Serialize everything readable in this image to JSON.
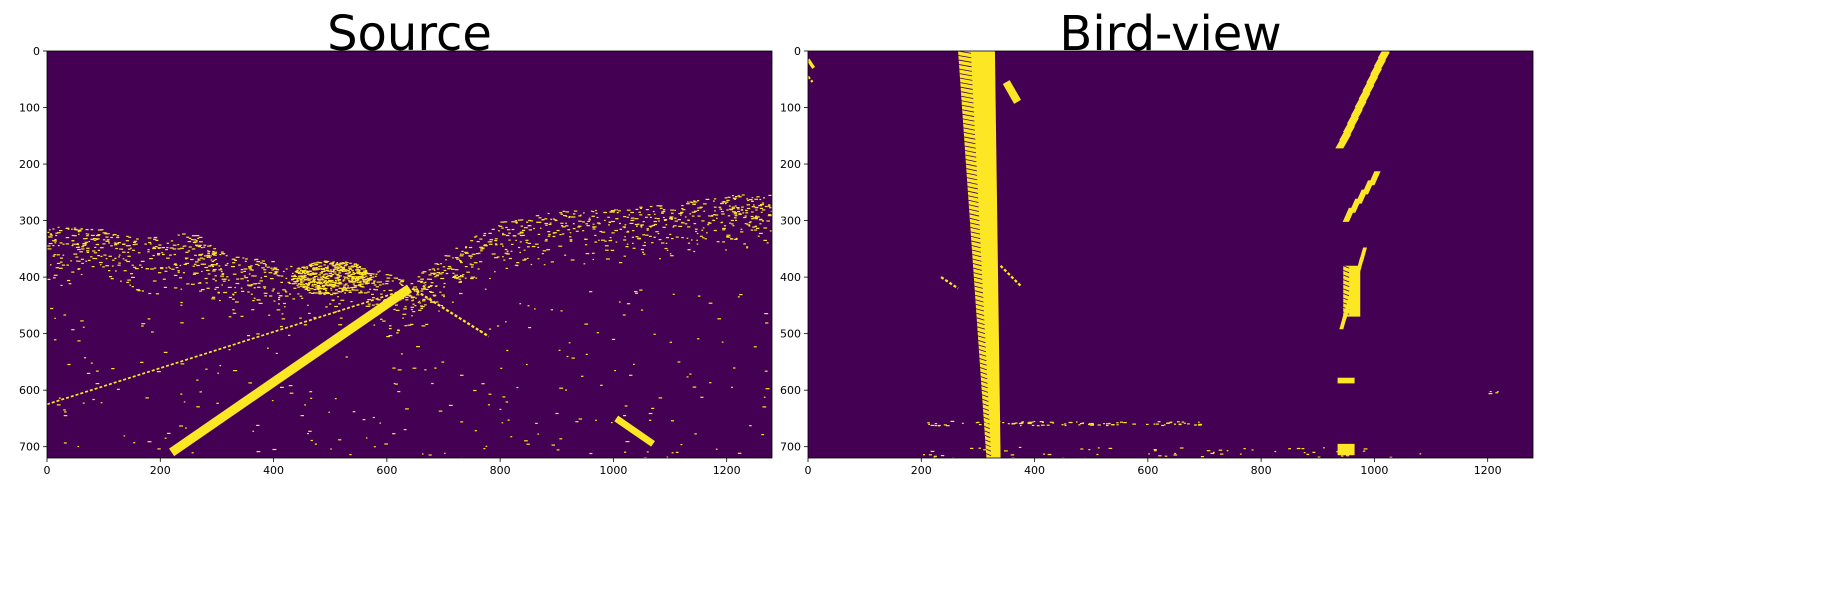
{
  "chart_data": [
    {
      "type": "heatmap",
      "title": "Source",
      "xlabel": "",
      "ylabel": "",
      "xlim": [
        0,
        1280
      ],
      "ylim": [
        720,
        0
      ],
      "x_ticks": [
        0,
        200,
        400,
        600,
        800,
        1000,
        1200
      ],
      "y_ticks": [
        0,
        100,
        200,
        300,
        400,
        500,
        600,
        700
      ],
      "background_color": "#440154",
      "foreground_color": "#fde725",
      "features": [
        {
          "kind": "line",
          "points": [
            [
              220,
              710
            ],
            [
              640,
              420
            ]
          ],
          "width": 16
        },
        {
          "kind": "line",
          "points": [
            [
              0,
              625
            ],
            [
              640,
              420
            ]
          ],
          "width": 3
        },
        {
          "kind": "line",
          "points": [
            [
              645,
              420
            ],
            [
              780,
              505
            ]
          ],
          "width": 4
        },
        {
          "kind": "line",
          "points": [
            [
              1005,
              650
            ],
            [
              1070,
              695
            ]
          ],
          "width": 12
        },
        {
          "kind": "edges",
          "points": [
            [
              0,
              310
            ],
            [
              80,
              310
            ],
            [
              150,
              330
            ],
            [
              250,
              320
            ],
            [
              320,
              360
            ],
            [
              420,
              375
            ],
            [
              560,
              380
            ],
            [
              640,
              410
            ],
            [
              700,
              360
            ],
            [
              800,
              300
            ],
            [
              900,
              280
            ],
            [
              1000,
              280
            ],
            [
              1100,
              270
            ],
            [
              1200,
              255
            ],
            [
              1280,
              250
            ]
          ],
          "spread": 110,
          "count": 1400
        },
        {
          "kind": "cluster",
          "center": [
            500,
            400
          ],
          "rx": 70,
          "ry": 30,
          "count": 500
        },
        {
          "kind": "dots",
          "range": [
            [
              0,
              1280
            ],
            [
              420,
              720
            ]
          ],
          "count": 260
        }
      ]
    },
    {
      "type": "heatmap",
      "title": "Bird-view",
      "xlabel": "",
      "ylabel": "",
      "xlim": [
        0,
        1280
      ],
      "ylim": [
        720,
        0
      ],
      "x_ticks": [
        0,
        200,
        400,
        600,
        800,
        1000,
        1200
      ],
      "y_ticks": [
        0,
        100,
        200,
        300,
        400,
        500,
        600,
        700
      ],
      "background_color": "#440154",
      "foreground_color": "#fde725",
      "features": [
        {
          "kind": "lane",
          "top": [
            265,
            330
          ],
          "bottom": [
            315,
            340
          ],
          "y": [
            0,
            720
          ]
        },
        {
          "kind": "dashes",
          "points": [
            [
              1020,
              0
            ],
            [
              945,
              160
            ]
          ],
          "width": 28,
          "count": 12
        },
        {
          "kind": "dashes",
          "points": [
            [
              1000,
              225
            ],
            [
              955,
              290
            ]
          ],
          "width": 22,
          "count": 5
        },
        {
          "kind": "lane",
          "top": [
            945,
            975
          ],
          "bottom": [
            945,
            975
          ],
          "y": [
            380,
            470
          ]
        },
        {
          "kind": "dashes",
          "points": [
            [
              980,
              360
            ],
            [
              945,
              480
            ]
          ],
          "width": 14,
          "count": 8
        },
        {
          "kind": "line",
          "points": [
            [
              235,
              400
            ],
            [
              265,
              420
            ]
          ],
          "width": 4
        },
        {
          "kind": "line",
          "points": [
            [
              340,
              380
            ],
            [
              375,
              415
            ]
          ],
          "width": 4
        },
        {
          "kind": "line",
          "points": [
            [
              350,
              55
            ],
            [
              370,
              90
            ]
          ],
          "width": 14
        },
        {
          "kind": "block",
          "range": [
            [
              935,
              965
            ],
            [
              695,
              715
            ]
          ]
        },
        {
          "kind": "block",
          "range": [
            [
              935,
              965
            ],
            [
              578,
              588
            ]
          ]
        },
        {
          "kind": "line",
          "points": [
            [
              0,
              15
            ],
            [
              10,
              30
            ]
          ],
          "width": 6
        },
        {
          "kind": "line",
          "points": [
            [
              0,
              45
            ],
            [
              8,
              55
            ]
          ],
          "width": 4
        },
        {
          "kind": "dots",
          "range": [
            [
              200,
              700
            ],
            [
              654,
              662
            ]
          ],
          "count": 90
        },
        {
          "kind": "dots",
          "range": [
            [
              200,
              1100
            ],
            [
              700,
              720
            ]
          ],
          "count": 60
        },
        {
          "kind": "dots",
          "range": [
            [
              1200,
              1220
            ],
            [
              600,
              606
            ]
          ],
          "count": 4
        }
      ]
    }
  ]
}
